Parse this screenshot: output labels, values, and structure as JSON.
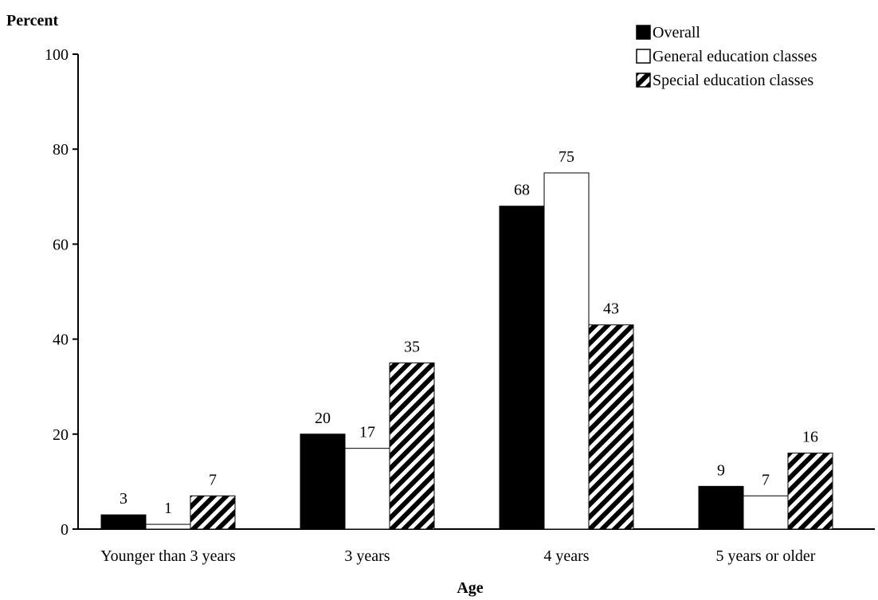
{
  "chart_data": {
    "type": "bar",
    "title": "",
    "xlabel": "Age",
    "ylabel": "Percent",
    "ylim": [
      0,
      100
    ],
    "yticks": [
      "0",
      "20",
      "40",
      "60",
      "80",
      "100"
    ],
    "categories": [
      "Younger than 3 years",
      "3 years",
      "4 years",
      "5 years or older"
    ],
    "series": [
      {
        "name": "Overall",
        "values": [
          3,
          20,
          68,
          9
        ],
        "fill": "solid",
        "color": "#000000"
      },
      {
        "name": "General education classes",
        "values": [
          1,
          17,
          75,
          7
        ],
        "fill": "empty",
        "color": "#ffffff"
      },
      {
        "name": "Special education classes",
        "values": [
          7,
          35,
          43,
          16
        ],
        "fill": "hatched",
        "color": "#000000"
      }
    ],
    "legend_position": "top-right",
    "grid": false
  }
}
